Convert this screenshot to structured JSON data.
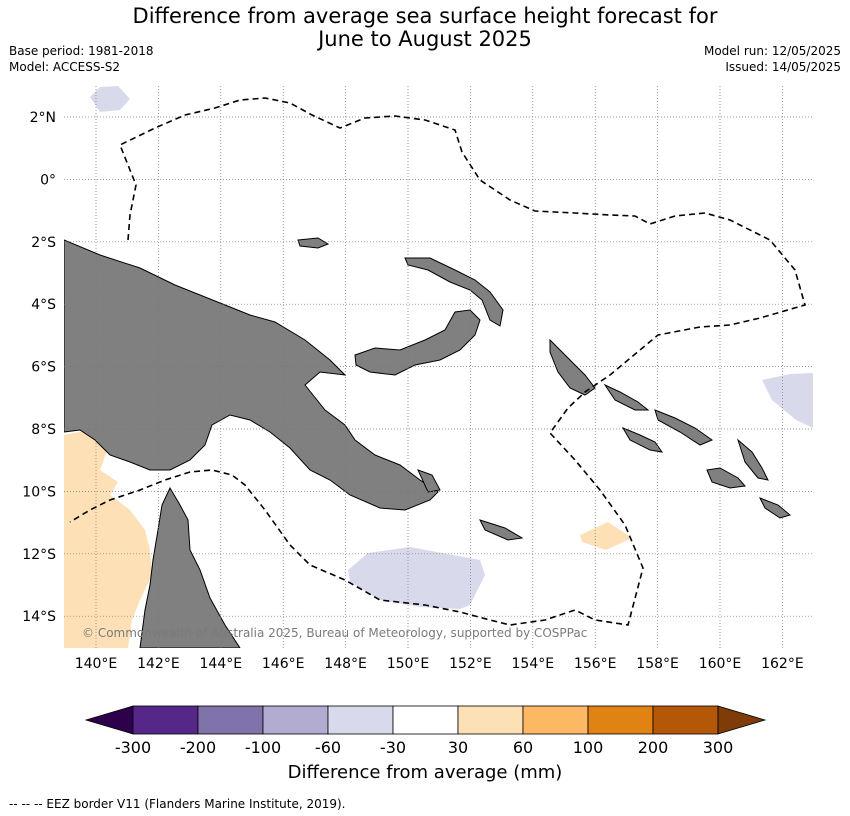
{
  "header": {
    "title_line1": "Difference from average sea surface height forecast for",
    "title_line2": "June to August 2025",
    "base_period": "Base period: 1981-2018",
    "model": "Model: ACCESS-S2",
    "model_run": "Model run: 12/05/2025",
    "issued": "Issued: 14/05/2025"
  },
  "map": {
    "lat_labels": [
      "2°N",
      "0°",
      "2°S",
      "4°S",
      "6°S",
      "8°S",
      "10°S",
      "12°S",
      "14°S"
    ],
    "lon_labels": [
      "140°E",
      "142°E",
      "144°E",
      "146°E",
      "148°E",
      "150°E",
      "152°E",
      "154°E",
      "156°E",
      "158°E",
      "160°E",
      "162°E"
    ],
    "copyright": "© Commonwealth of Australia 2025, Bureau of Meteorology, supported by COSPPac",
    "colors": {
      "land": "#808080",
      "eez": "#000000",
      "grid": "#777777"
    }
  },
  "colorbar": {
    "labels": [
      "-300",
      "-200",
      "-100",
      "-60",
      "-30",
      "30",
      "60",
      "100",
      "200",
      "300"
    ],
    "colors": [
      "#2d004b",
      "#542788",
      "#8073ac",
      "#b2abd2",
      "#d8daeb",
      "#ffffff",
      "#fee0b6",
      "#fdb863",
      "#e08214",
      "#b35806",
      "#7f3b08"
    ],
    "title": "Difference from average (mm)"
  },
  "footer": {
    "eez_note": "--  --  -- EEZ border V11 (Flanders Marine Institute, 2019)."
  }
}
